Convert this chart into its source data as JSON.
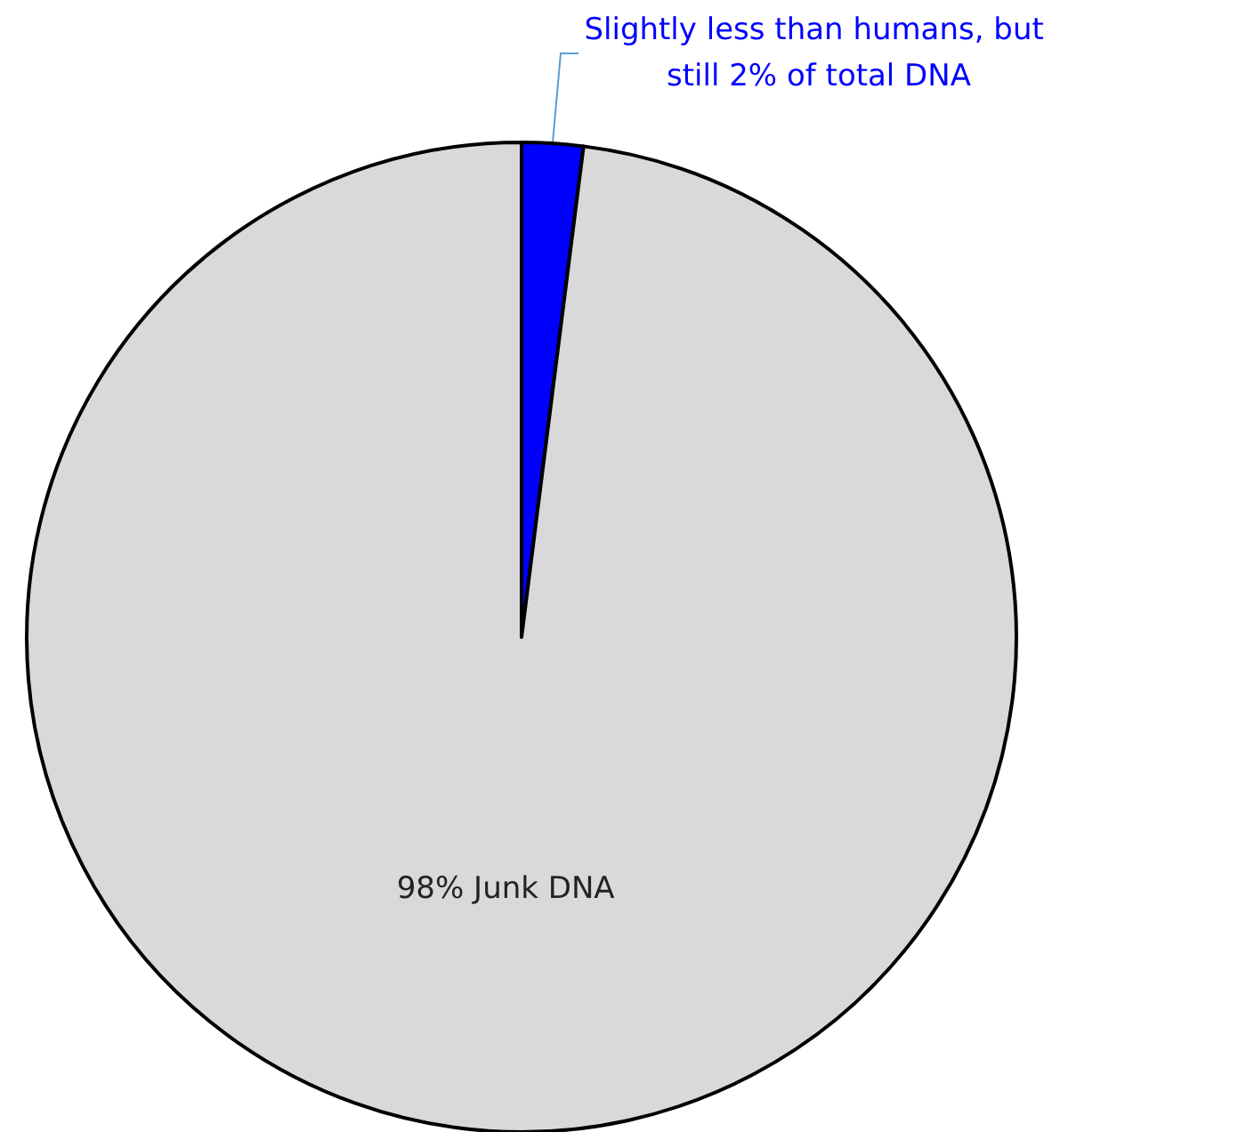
{
  "chart_data": {
    "type": "pie",
    "categories": [
      "Slightly less than humans, but still 2% of total DNA",
      "98% Junk DNA"
    ],
    "values": [
      2,
      98
    ],
    "colors": [
      "#0000ff",
      "#d9d9d9"
    ]
  }
}
